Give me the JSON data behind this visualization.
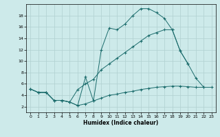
{
  "xlabel": "Humidex (Indice chaleur)",
  "background_color": "#cdeaea",
  "grid_color": "#b0d0d0",
  "line_color": "#1a6b6b",
  "xlim": [
    -0.5,
    23.5
  ],
  "ylim": [
    1,
    20
  ],
  "xticks": [
    0,
    1,
    2,
    3,
    4,
    5,
    6,
    7,
    8,
    9,
    10,
    11,
    12,
    13,
    14,
    15,
    16,
    17,
    18,
    19,
    20,
    21,
    22,
    23
  ],
  "yticks": [
    2,
    4,
    6,
    8,
    10,
    12,
    14,
    16,
    18
  ],
  "line1_x": [
    0,
    1,
    2,
    3,
    4,
    5,
    6,
    7,
    8,
    9,
    10,
    11,
    12,
    13,
    14,
    15,
    16,
    17,
    18,
    19,
    20,
    21,
    22,
    23
  ],
  "line1_y": [
    5.1,
    4.5,
    4.5,
    3.1,
    3.1,
    2.8,
    2.2,
    2.5,
    3.0,
    3.5,
    4.0,
    4.2,
    4.5,
    4.7,
    5.0,
    5.2,
    5.4,
    5.5,
    5.6,
    5.6,
    5.5,
    5.4,
    5.4,
    5.4
  ],
  "line2_x": [
    0,
    1,
    2,
    3,
    4,
    5,
    6,
    7,
    8,
    9,
    10,
    11,
    12,
    13,
    14,
    15,
    16,
    17,
    18,
    19,
    20
  ],
  "line2_y": [
    5.1,
    4.5,
    4.5,
    3.1,
    3.1,
    2.8,
    2.2,
    7.2,
    3.0,
    12.0,
    15.8,
    15.5,
    16.5,
    18.0,
    19.2,
    19.2,
    18.5,
    17.5,
    15.5,
    11.8,
    9.5
  ],
  "line3_x": [
    0,
    1,
    2,
    3,
    4,
    5,
    6,
    7,
    8,
    9,
    10,
    11,
    12,
    13,
    14,
    15,
    16,
    17,
    18,
    19,
    20,
    21,
    22
  ],
  "line3_y": [
    5.1,
    4.5,
    4.5,
    3.1,
    3.1,
    2.8,
    5.0,
    6.0,
    6.8,
    8.5,
    9.5,
    10.5,
    11.5,
    12.5,
    13.5,
    14.5,
    15.0,
    15.5,
    15.5,
    11.8,
    9.5,
    7.0,
    5.4
  ]
}
